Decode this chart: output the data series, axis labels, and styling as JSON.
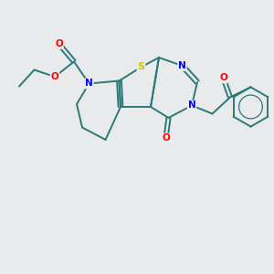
{
  "background_color": "#e8eaec",
  "atom_colors": {
    "S": "#cccc00",
    "N": "#0000ff",
    "O": "#ff0000",
    "C": "#2a7a7a",
    "bond": "#2a7a7a"
  },
  "bond_width": 1.4,
  "figsize": [
    3.0,
    3.0
  ],
  "dpi": 100,
  "xlim": [
    0,
    10
  ],
  "ylim": [
    0,
    10
  ]
}
